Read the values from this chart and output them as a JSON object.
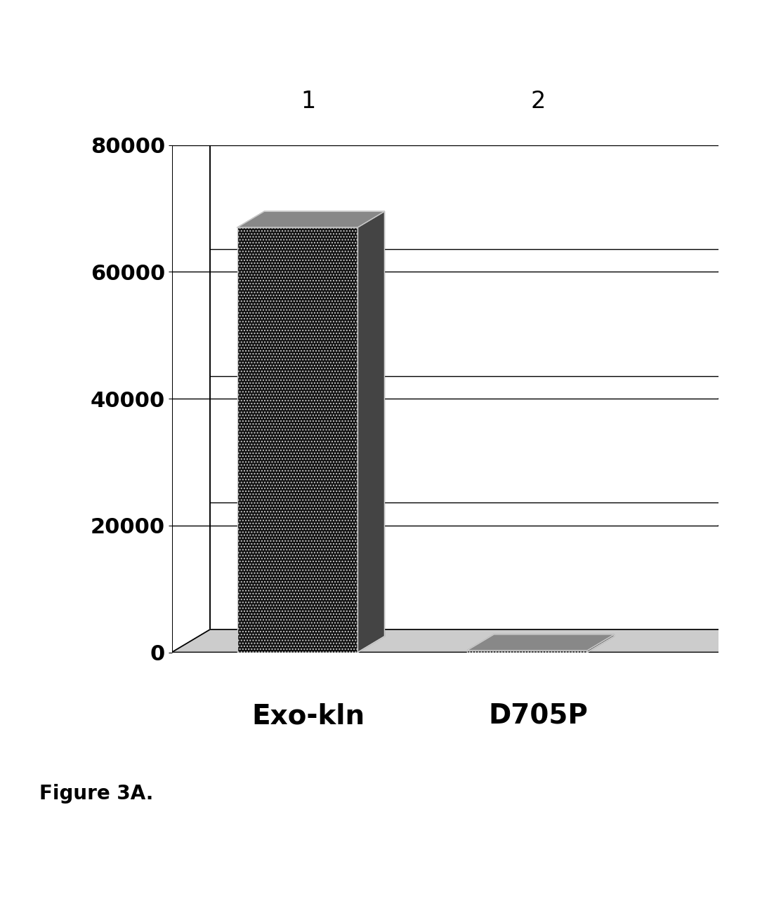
{
  "categories": [
    "Exo-kln",
    "D705P"
  ],
  "values": [
    67000,
    200
  ],
  "col_labels": [
    "1",
    "2"
  ],
  "ylim": [
    0,
    80000
  ],
  "yticks": [
    0,
    20000,
    40000,
    60000,
    80000
  ],
  "ytick_labels": [
    "0",
    "20000",
    "40000",
    "60000",
    "80000"
  ],
  "bar_face_color": "#111111",
  "bar_side_color": "#444444",
  "bar_top_color": "#888888",
  "bar_edge_color": "#cccccc",
  "background_color": "#ffffff",
  "wall_color": "#f0f0f0",
  "wall_edge_color": "#000000",
  "floor_color": "#cccccc",
  "figure_caption": "Figure 3A.",
  "caption_fontsize": 20,
  "tick_fontsize": 22,
  "label_fontsize": 28,
  "col_label_fontsize": 24,
  "grid_color": "#000000",
  "grid_linewidth": 1.0
}
